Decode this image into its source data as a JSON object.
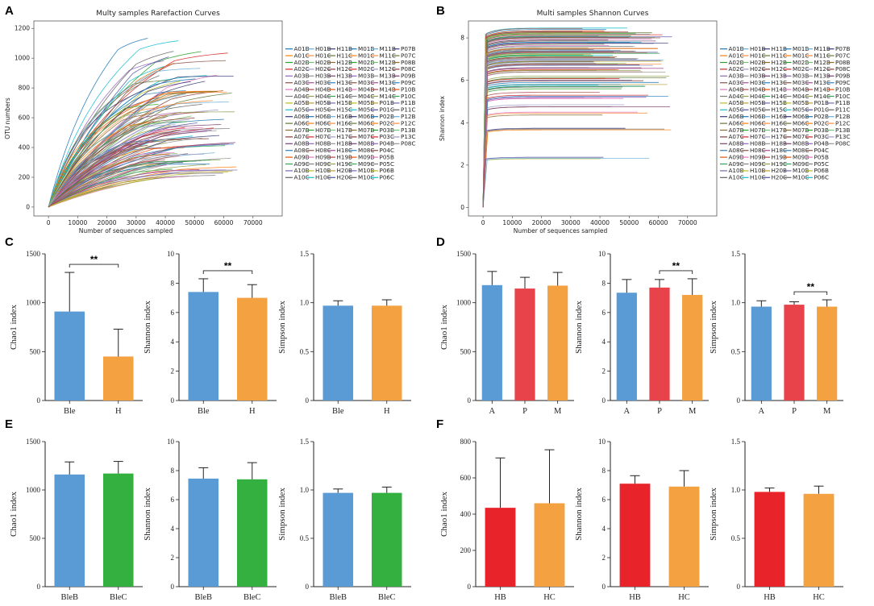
{
  "panels": {
    "A": "A",
    "B": "B",
    "C": "C",
    "D": "D",
    "E": "E",
    "F": "F"
  },
  "colors": {
    "blue": "#5B9BD5",
    "orange": "#F4A142",
    "red": "#E8424A",
    "green": "#33B040",
    "bright_red": "#E8242A"
  },
  "legend_labels": [
    "A01B",
    "A01C",
    "A02B",
    "A02C",
    "A03B",
    "A03C",
    "A04B",
    "A04C",
    "A05B",
    "A05C",
    "A06B",
    "A06C",
    "A07B",
    "A07C",
    "A08B",
    "A08C",
    "A09B",
    "A09C",
    "A10B",
    "A10C",
    "H01B",
    "H01C",
    "H02B",
    "H02C",
    "H03B",
    "H03C",
    "H04B",
    "H04C",
    "H05B",
    "H05C",
    "H06B",
    "H06C",
    "H07B",
    "H07C",
    "H08B",
    "H08C",
    "H09B",
    "H09C",
    "H10B",
    "H10C",
    "H11B",
    "H11C",
    "H12B",
    "H12C",
    "H13B",
    "H13C",
    "H14B",
    "H14C",
    "H15B",
    "H15C",
    "H16B",
    "H16C",
    "H17B",
    "H17C",
    "H18B",
    "H18C",
    "H19B",
    "H19C",
    "H20B",
    "H20C",
    "M01B",
    "M01C",
    "M02B",
    "M02C",
    "M03B",
    "M03C",
    "M04B",
    "M04C",
    "M05B",
    "M05C",
    "M06B",
    "M06C",
    "M07B",
    "M07C",
    "M08B",
    "M08C",
    "M09B",
    "M09C",
    "M10B",
    "M10C",
    "M11B",
    "M11C",
    "M12B",
    "M12C",
    "M13B",
    "M13C",
    "M14B",
    "M14C",
    "P01B",
    "P01C",
    "P02B",
    "P02C",
    "P03B",
    "P03C",
    "P04B",
    "P04C",
    "P05B",
    "P05C",
    "P06B",
    "P06C",
    "P07B",
    "P07C",
    "P08B",
    "P08C",
    "P09B",
    "P09C",
    "P10B",
    "P10C",
    "P11B",
    "P11C",
    "P12B",
    "P12C",
    "P13B",
    "P13C",
    "P08C"
  ],
  "chart_data": [
    {
      "id": "A",
      "type": "line",
      "title": "Multy samples Rarefaction Curves",
      "xlabel": "Number of sequences sampled",
      "ylabel": "OTU numbers",
      "xlim": [
        -5000,
        80000
      ],
      "ylim": [
        -60,
        1250
      ],
      "xticks": [
        0,
        10000,
        20000,
        30000,
        40000,
        50000,
        60000,
        70000
      ],
      "yticks": [
        0,
        200,
        400,
        600,
        800,
        1000,
        1200
      ],
      "series_summary": "117 rarefaction curves; plateaus ~210-1180 OTUs, depths ~34000-75000 sequences",
      "plateau_values": [
        1180,
        1110,
        1090,
        1060,
        1020,
        990,
        960,
        940,
        920,
        900,
        880,
        860,
        840,
        820,
        800,
        790,
        780,
        760,
        740,
        720,
        710,
        700,
        690,
        680,
        670,
        660,
        650,
        640,
        620,
        610,
        600,
        590,
        580,
        570,
        560,
        550,
        540,
        530,
        520,
        510,
        500,
        480,
        470,
        460,
        450,
        440,
        430,
        420,
        410,
        400,
        390,
        380,
        370,
        360,
        350,
        340,
        330,
        320,
        310,
        300,
        290,
        280,
        270,
        260,
        250,
        240,
        230,
        220,
        210
      ]
    },
    {
      "id": "B",
      "type": "line",
      "title": "Multi samples Shannon Curves",
      "xlabel": "Number of sequences sampled",
      "ylabel": "Shannon index",
      "xlim": [
        -5000,
        80000
      ],
      "ylim": [
        -0.4,
        8.8
      ],
      "xticks": [
        0,
        10000,
        20000,
        30000,
        40000,
        50000,
        60000,
        70000
      ],
      "yticks": [
        0,
        2,
        4,
        6,
        8
      ],
      "series_summary": "117 Shannon curves; plateaus ~2.3-8.3",
      "plateau_values": [
        8.3,
        8.25,
        8.2,
        8.15,
        8.1,
        8.0,
        7.95,
        7.9,
        7.85,
        7.8,
        7.75,
        7.7,
        7.6,
        7.5,
        7.45,
        7.4,
        7.3,
        7.2,
        7.1,
        7.0,
        6.95,
        6.9,
        6.8,
        6.7,
        6.6,
        6.5,
        6.4,
        6.2,
        6.1,
        6.0,
        5.9,
        5.8,
        5.6,
        5.3,
        5.2,
        4.75,
        4.5,
        3.7,
        2.3
      ]
    },
    {
      "id": "C1",
      "type": "bar",
      "ylabel": "Chao1 index",
      "categories": [
        "Ble",
        "H"
      ],
      "values": [
        910,
        450
      ],
      "errors": [
        400,
        280
      ],
      "colors": [
        "#5B9BD5",
        "#F4A142"
      ],
      "ylim": [
        0,
        1500
      ],
      "yticks": [
        0,
        500,
        1000,
        1500
      ],
      "yticklabels": [
        "0",
        "500",
        "1000",
        "1500"
      ],
      "significance": [
        {
          "from": 0,
          "to": 1,
          "label": "**"
        }
      ]
    },
    {
      "id": "C2",
      "type": "bar",
      "ylabel": "Shannon index",
      "categories": [
        "Ble",
        "H"
      ],
      "values": [
        7.4,
        7.0
      ],
      "errors": [
        0.9,
        0.9
      ],
      "colors": [
        "#5B9BD5",
        "#F4A142"
      ],
      "ylim": [
        0,
        10
      ],
      "yticks": [
        0,
        2,
        4,
        6,
        8,
        10
      ],
      "yticklabels": [
        "0",
        "2",
        "4",
        "6",
        "8",
        "10"
      ],
      "significance": [
        {
          "from": 0,
          "to": 1,
          "label": "**"
        }
      ]
    },
    {
      "id": "C3",
      "type": "bar",
      "ylabel": "Simpson index",
      "categories": [
        "Ble",
        "H"
      ],
      "values": [
        0.97,
        0.97
      ],
      "errors": [
        0.05,
        0.06
      ],
      "colors": [
        "#5B9BD5",
        "#F4A142"
      ],
      "ylim": [
        0,
        1.5
      ],
      "yticks": [
        0,
        0.5,
        1.0,
        1.5
      ],
      "yticklabels": [
        "0",
        "0.5",
        "1.0",
        "1.5"
      ],
      "significance": []
    },
    {
      "id": "D1",
      "type": "bar",
      "ylabel": "Chao1 index",
      "categories": [
        "A",
        "P",
        "M"
      ],
      "values": [
        1180,
        1145,
        1175
      ],
      "errors": [
        140,
        115,
        135
      ],
      "colors": [
        "#5B9BD5",
        "#E8424A",
        "#F4A142"
      ],
      "ylim": [
        0,
        1500
      ],
      "yticks": [
        0,
        500,
        1000,
        1500
      ],
      "yticklabels": [
        "0",
        "500",
        "1000",
        "1500"
      ],
      "significance": []
    },
    {
      "id": "D2",
      "type": "bar",
      "ylabel": "Shannon index",
      "categories": [
        "A",
        "P",
        "M"
      ],
      "values": [
        7.35,
        7.7,
        7.2
      ],
      "errors": [
        0.9,
        0.55,
        1.1
      ],
      "colors": [
        "#5B9BD5",
        "#E8424A",
        "#F4A142"
      ],
      "ylim": [
        0,
        10
      ],
      "yticks": [
        0,
        2,
        4,
        6,
        8,
        10
      ],
      "yticklabels": [
        "0",
        "2",
        "4",
        "6",
        "8",
        "10"
      ],
      "significance": [
        {
          "from": 1,
          "to": 2,
          "label": "**"
        }
      ]
    },
    {
      "id": "D3",
      "type": "bar",
      "ylabel": "Simpson index",
      "categories": [
        "A",
        "P",
        "M"
      ],
      "values": [
        0.96,
        0.98,
        0.96
      ],
      "errors": [
        0.06,
        0.03,
        0.07
      ],
      "colors": [
        "#5B9BD5",
        "#E8424A",
        "#F4A142"
      ],
      "ylim": [
        0,
        1.5
      ],
      "yticks": [
        0,
        0.5,
        1.0,
        1.5
      ],
      "yticklabels": [
        "0",
        "0.5",
        "1.0",
        "1.5"
      ],
      "significance": [
        {
          "from": 1,
          "to": 2,
          "label": "**"
        }
      ]
    },
    {
      "id": "E1",
      "type": "bar",
      "ylabel": "Chao1 index",
      "categories": [
        "BleB",
        "BleC"
      ],
      "values": [
        1160,
        1170
      ],
      "errors": [
        130,
        125
      ],
      "colors": [
        "#5B9BD5",
        "#33B040"
      ],
      "ylim": [
        0,
        1500
      ],
      "yticks": [
        0,
        500,
        1000,
        1500
      ],
      "yticklabels": [
        "0",
        "500",
        "1000",
        "1500"
      ],
      "significance": []
    },
    {
      "id": "E2",
      "type": "bar",
      "ylabel": "Shannon index",
      "categories": [
        "BleB",
        "BleC"
      ],
      "values": [
        7.45,
        7.4
      ],
      "errors": [
        0.75,
        1.15
      ],
      "colors": [
        "#5B9BD5",
        "#33B040"
      ],
      "ylim": [
        0,
        10
      ],
      "yticks": [
        0,
        2,
        4,
        6,
        8,
        10
      ],
      "yticklabels": [
        "0",
        "2",
        "4",
        "6",
        "8",
        "10"
      ],
      "significance": []
    },
    {
      "id": "E3",
      "type": "bar",
      "ylabel": "Simpson index",
      "categories": [
        "BleB",
        "BleC"
      ],
      "values": [
        0.97,
        0.97
      ],
      "errors": [
        0.04,
        0.06
      ],
      "colors": [
        "#5B9BD5",
        "#33B040"
      ],
      "ylim": [
        0,
        1.5
      ],
      "yticks": [
        0,
        0.5,
        1.0,
        1.5
      ],
      "yticklabels": [
        "0",
        "0.5",
        "1.0",
        "1.5"
      ],
      "significance": []
    },
    {
      "id": "F1",
      "type": "bar",
      "ylabel": "Chao1 index",
      "categories": [
        "HB",
        "HC"
      ],
      "values": [
        435,
        460
      ],
      "errors": [
        275,
        295
      ],
      "colors": [
        "#E8242A",
        "#F4A142"
      ],
      "ylim": [
        0,
        800
      ],
      "yticks": [
        0,
        200,
        400,
        600,
        800
      ],
      "yticklabels": [
        "0",
        "200",
        "400",
        "600",
        "800"
      ],
      "significance": []
    },
    {
      "id": "F2",
      "type": "bar",
      "ylabel": "Shannon index",
      "categories": [
        "HB",
        "HC"
      ],
      "values": [
        7.1,
        6.9
      ],
      "errors": [
        0.55,
        1.1
      ],
      "colors": [
        "#E8242A",
        "#F4A142"
      ],
      "ylim": [
        0,
        10
      ],
      "yticks": [
        0,
        2,
        4,
        6,
        8,
        10
      ],
      "yticklabels": [
        "0",
        "2",
        "4",
        "6",
        "8",
        "10"
      ],
      "significance": []
    },
    {
      "id": "F3",
      "type": "bar",
      "ylabel": "Simpson index",
      "categories": [
        "HB",
        "HC"
      ],
      "values": [
        0.98,
        0.96
      ],
      "errors": [
        0.04,
        0.08
      ],
      "colors": [
        "#E8242A",
        "#F4A142"
      ],
      "ylim": [
        0,
        1.5
      ],
      "yticks": [
        0,
        0.5,
        1.0,
        1.5
      ],
      "yticklabels": [
        "0",
        "0.5",
        "1.0",
        "1.5"
      ],
      "significance": []
    }
  ]
}
